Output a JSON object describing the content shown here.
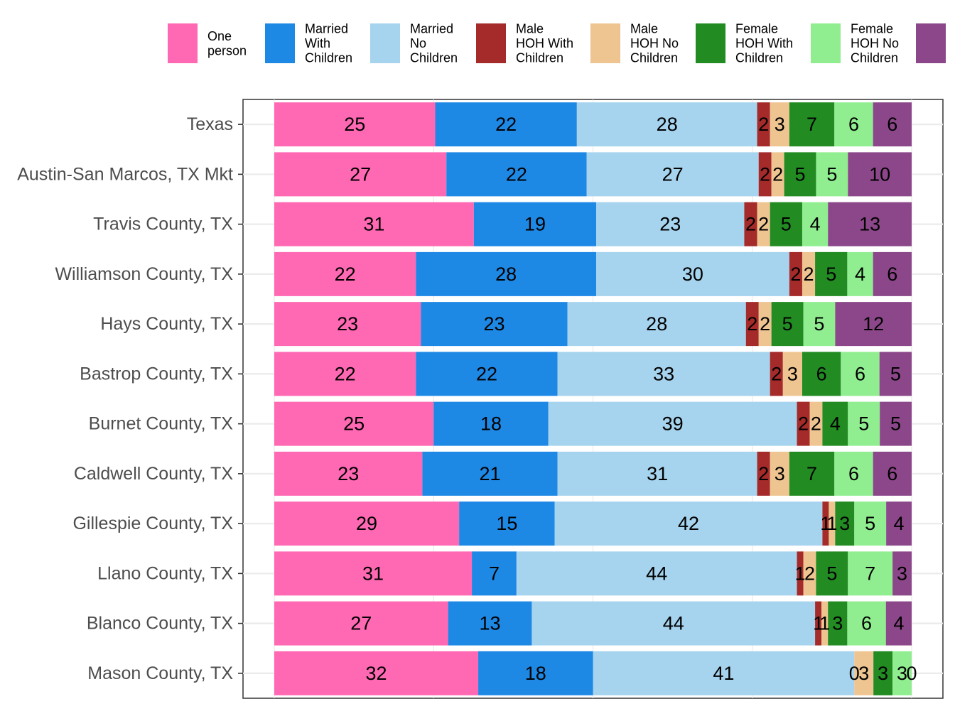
{
  "chart_data": {
    "type": "bar",
    "orientation": "horizontal",
    "stacked": true,
    "title": "",
    "xlabel": "",
    "ylabel": "",
    "xlim": [
      0,
      100
    ],
    "grid": true,
    "legend_position": "top",
    "categories": [
      "Texas",
      "Austin-San Marcos, TX Mkt",
      "Travis County, TX",
      "Williamson County, TX",
      "Hays County, TX",
      "Bastrop County, TX",
      "Burnet County, TX",
      "Caldwell County, TX",
      "Gillespie County, TX",
      "Llano County, TX",
      "Blanco County, TX",
      "Mason County, TX"
    ],
    "series": [
      {
        "name": "One person",
        "legend_lines": [
          "One",
          "person"
        ],
        "color": "#FF69B4",
        "values": [
          25,
          27,
          31,
          22,
          23,
          22,
          25,
          23,
          29,
          31,
          27,
          32
        ]
      },
      {
        "name": "Married With Children",
        "legend_lines": [
          "Married",
          "With",
          "Children"
        ],
        "color": "#1E88E5",
        "values": [
          22,
          22,
          19,
          28,
          23,
          22,
          18,
          21,
          15,
          7,
          13,
          18
        ]
      },
      {
        "name": "Married No Children",
        "legend_lines": [
          "Married",
          "No",
          "Children"
        ],
        "color": "#A6D3EE",
        "values": [
          28,
          27,
          23,
          30,
          28,
          33,
          39,
          31,
          42,
          44,
          44,
          41
        ]
      },
      {
        "name": "Male HOH With Children",
        "legend_lines": [
          "Male",
          "HOH With",
          "Children"
        ],
        "color": "#A52A2A",
        "values": [
          2,
          2,
          2,
          2,
          2,
          2,
          2,
          2,
          1,
          1,
          1,
          0
        ]
      },
      {
        "name": "Male HOH No Children",
        "legend_lines": [
          "Male",
          "HOH No",
          "Children"
        ],
        "color": "#EEC591",
        "values": [
          3,
          2,
          2,
          2,
          2,
          3,
          2,
          3,
          1,
          2,
          1,
          3
        ]
      },
      {
        "name": "Female HOH With Children",
        "legend_lines": [
          "Female",
          "HOH With",
          "Children"
        ],
        "color": "#228B22",
        "values": [
          7,
          5,
          5,
          5,
          5,
          6,
          4,
          7,
          3,
          5,
          3,
          3
        ]
      },
      {
        "name": "Female HOH No Children",
        "legend_lines": [
          "Female",
          "HOH No",
          "Children"
        ],
        "color": "#90EE90",
        "values": [
          6,
          5,
          4,
          4,
          5,
          6,
          5,
          6,
          5,
          7,
          6,
          3
        ]
      },
      {
        "name": "",
        "legend_lines": [],
        "color": "#8B4789",
        "values": [
          6,
          10,
          13,
          6,
          12,
          5,
          5,
          6,
          4,
          3,
          4,
          0
        ]
      }
    ]
  }
}
